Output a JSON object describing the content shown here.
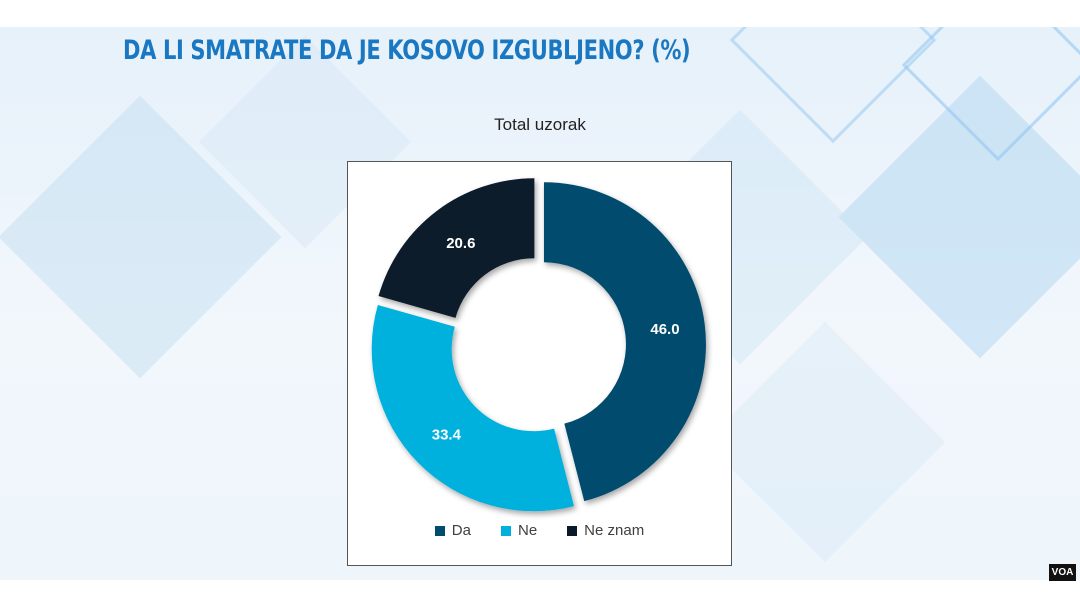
{
  "slide": {
    "title": "DA LI SMATRATE DA JE KOSOVO IZGUBLJENO? (%)",
    "logo": "VOA"
  },
  "chart_data": {
    "type": "pie",
    "title": "Total uzorak",
    "donut": true,
    "categories": [
      "Da",
      "Ne",
      "Ne znam"
    ],
    "values": [
      46.0,
      33.4,
      20.6
    ],
    "value_labels": [
      "46.0",
      "33.4",
      "20.6"
    ],
    "colors": [
      "#004b6e",
      "#00b0dd",
      "#0a1a2a"
    ],
    "legend": [
      {
        "label": "Da",
        "color": "#004b6e"
      },
      {
        "label": "Ne",
        "color": "#00b0dd"
      },
      {
        "label": "Ne znam",
        "color": "#0a1a2a"
      }
    ],
    "legend_position": "bottom",
    "exploded_slices": true
  }
}
